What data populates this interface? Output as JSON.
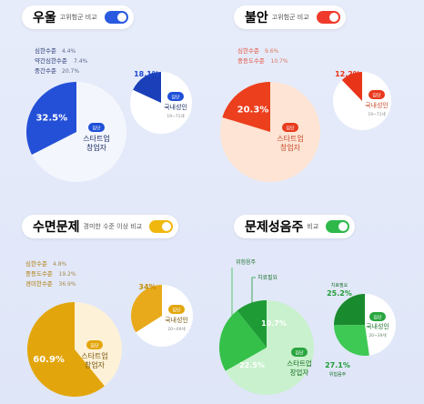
{
  "panels": [
    {
      "id": "depression",
      "title": "우울",
      "subtitle": "고위험군 비교",
      "accent": "#1e4fd8",
      "toggle_color": "#2a5ae0",
      "levels": [
        {
          "label": "심한수준",
          "value": "4.4%"
        },
        {
          "label": "약간심한수준",
          "value": "7.4%"
        },
        {
          "label": "중간수준",
          "value": "20.7%"
        }
      ],
      "ref_badge": "집단",
      "ref_name": "국내성인",
      "ref_sub": "19~71세",
      "main_badge": "집단",
      "main_name_1": "스타트업",
      "main_name_2": "창업자"
    },
    {
      "id": "anxiety",
      "title": "불안",
      "subtitle": "고위험군 비교",
      "accent": "#e83a1d",
      "toggle_color": "#ef3b2c",
      "levels": [
        {
          "label": "심한수준",
          "value": "9.6%"
        },
        {
          "label": "중등도수준",
          "value": "10.7%"
        }
      ],
      "ref_badge": "집단",
      "ref_name": "국내성인",
      "ref_sub": "19~71세",
      "main_badge": "집단",
      "main_name_1": "스타트업",
      "main_name_2": "창업자"
    },
    {
      "id": "sleep",
      "title": "수면문제",
      "subtitle": "경미한 수준 이상 비교",
      "accent": "#e2a60c",
      "toggle_color": "#f0b80f",
      "levels": [
        {
          "label": "심한수준",
          "value": "4.8%"
        },
        {
          "label": "중등도수준",
          "value": "19.2%"
        },
        {
          "label": "경미한수준",
          "value": "36.9%"
        }
      ],
      "ref_badge": "집단",
      "ref_name": "국내성인",
      "ref_sub": "20~69세",
      "main_badge": "집단",
      "main_name_1": "스타트업",
      "main_name_2": "창업자"
    },
    {
      "id": "drinking",
      "title": "문제성음주",
      "subtitle": "비교",
      "accent": "#1faa3a",
      "toggle_color": "#2eb84a",
      "levels": [
        {
          "label": "위험음주",
          "value": ""
        },
        {
          "label": "치료필요",
          "value": ""
        }
      ],
      "ref_badge": "집단",
      "ref_name": "국내성인",
      "ref_sub": "20~39세",
      "main_badge": "집단",
      "main_name_1": "스타트업",
      "main_name_2": "창업자",
      "ref_label_treat": "치료필요",
      "ref_label_risk": "위험음주"
    }
  ],
  "chart_data": [
    {
      "type": "pie",
      "title": "우울 고위험군 비교",
      "series": [
        {
          "name": "스타트업 창업자",
          "values": [
            32.5
          ],
          "labels": [
            "32.5%"
          ]
        },
        {
          "name": "국내성인",
          "values": [
            18.1
          ],
          "labels": [
            "18.1%"
          ]
        }
      ]
    },
    {
      "type": "pie",
      "title": "불안 고위험군 비교",
      "series": [
        {
          "name": "스타트업 창업자",
          "values": [
            20.3
          ],
          "labels": [
            "20.3%"
          ]
        },
        {
          "name": "국내성인",
          "values": [
            12.2
          ],
          "labels": [
            "12.2%"
          ]
        }
      ]
    },
    {
      "type": "pie",
      "title": "수면문제 경미한 수준 이상 비교",
      "series": [
        {
          "name": "스타트업 창업자",
          "values": [
            60.9
          ],
          "labels": [
            "60.9%"
          ]
        },
        {
          "name": "국내성인",
          "values": [
            34
          ],
          "labels": [
            "34%"
          ]
        }
      ]
    },
    {
      "type": "pie",
      "title": "문제성음주 비교",
      "series": [
        {
          "name": "스타트업 창업자",
          "categories": [
            "치료필요",
            "위험음주"
          ],
          "values": [
            10.7,
            22.5
          ],
          "labels": [
            "10.7%",
            "22.5%"
          ]
        },
        {
          "name": "국내성인",
          "categories": [
            "치료필요",
            "위험음주"
          ],
          "values": [
            25.2,
            27.1
          ],
          "labels": [
            "25.2%",
            "27.1%"
          ]
        }
      ]
    }
  ]
}
